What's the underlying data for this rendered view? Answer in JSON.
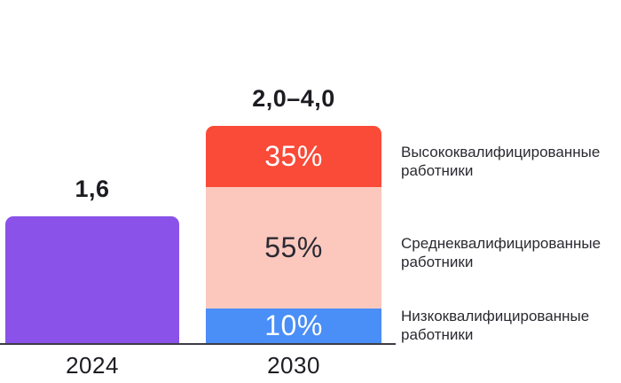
{
  "chart_data": {
    "type": "bar",
    "subtype": "stacked-column",
    "title": "",
    "xlabel": "",
    "ylabel": "",
    "grid": false,
    "legend_position": "right-of-stacked-bar",
    "categories": [
      "2024",
      "2030"
    ],
    "bars": [
      {
        "category": "2024",
        "total_label": "1,6",
        "total_value": 1.6,
        "color": "#8a52e8",
        "segments": []
      },
      {
        "category": "2030",
        "total_label": "2,0–4,0",
        "total_value_range": [
          2.0,
          4.0
        ],
        "segments": [
          {
            "name": "Высококвалифицированные работники",
            "percent": 35,
            "label": "35%",
            "color": "#fa4a38",
            "text_color": "#ffffff"
          },
          {
            "name": "Среднеквалифицированные работники",
            "percent": 55,
            "label": "55%",
            "color": "#fcc8be",
            "text_color": "#2a2a32"
          },
          {
            "name": "Низкоквалифицированные работники",
            "percent": 10,
            "label": "10%",
            "color": "#4a8ef7",
            "text_color": "#ffffff"
          }
        ]
      }
    ],
    "colors": {
      "bar_2024": "#8a52e8",
      "segment_high": "#fa4a38",
      "segment_mid": "#fcc8be",
      "segment_low": "#4a8ef7",
      "axis_line": "#3c3c46",
      "text_dark": "#1c1c22",
      "background": "#ffffff"
    }
  }
}
